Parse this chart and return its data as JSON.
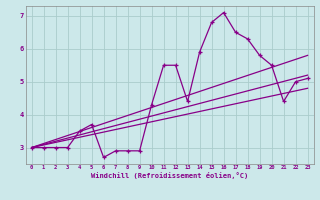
{
  "xlabel": "Windchill (Refroidissement éolien,°C)",
  "bg_color": "#cce8ea",
  "grid_color": "#aacccc",
  "line_color": "#880088",
  "xlim": [
    -0.5,
    23.5
  ],
  "ylim": [
    2.5,
    7.3
  ],
  "xticks": [
    0,
    1,
    2,
    3,
    4,
    5,
    6,
    7,
    8,
    9,
    10,
    11,
    12,
    13,
    14,
    15,
    16,
    17,
    18,
    19,
    20,
    21,
    22,
    23
  ],
  "yticks": [
    3,
    4,
    5,
    6,
    7
  ],
  "line1_x": [
    0,
    1,
    2,
    3,
    4,
    5,
    6,
    7,
    8,
    9,
    10,
    11,
    12,
    13,
    14,
    15,
    16,
    17,
    18,
    19,
    20,
    21,
    22,
    23
  ],
  "line1_y": [
    3.0,
    3.0,
    3.0,
    3.0,
    3.5,
    3.7,
    2.7,
    2.9,
    2.9,
    2.9,
    4.3,
    5.5,
    5.5,
    4.4,
    5.9,
    6.8,
    7.1,
    6.5,
    6.3,
    5.8,
    5.5,
    4.4,
    5.0,
    5.1
  ],
  "line2_x": [
    0,
    23
  ],
  "line2_y": [
    3.0,
    5.2
  ],
  "line3_x": [
    0,
    23
  ],
  "line3_y": [
    3.0,
    5.8
  ],
  "line4_x": [
    0,
    23
  ],
  "line4_y": [
    3.0,
    4.8
  ]
}
